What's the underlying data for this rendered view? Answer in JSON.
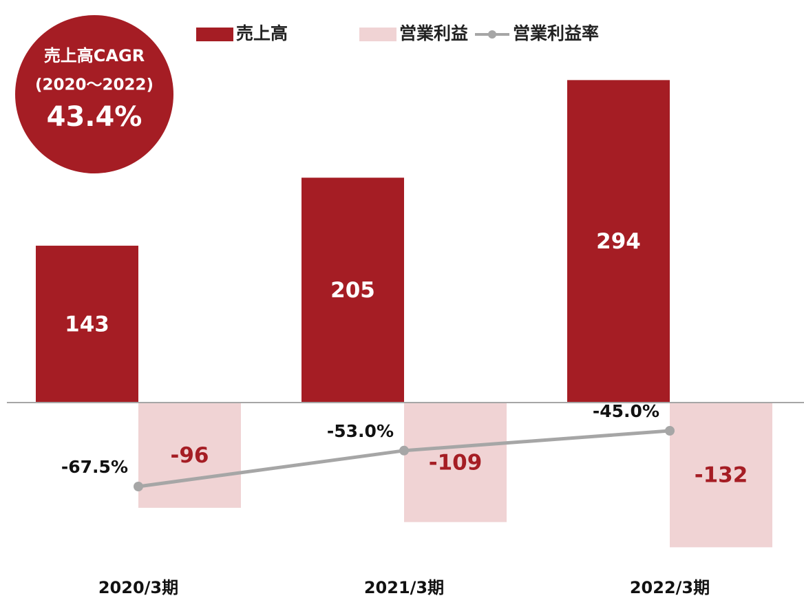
{
  "chart_data": {
    "type": "bar",
    "categories": [
      "2020/3期",
      "2021/3期",
      "2022/3期"
    ],
    "series": [
      {
        "name": "売上高",
        "color": "#a51d24",
        "values": [
          143,
          205,
          294
        ]
      },
      {
        "name": "営業利益",
        "color": "#f0d3d4",
        "values": [
          -96,
          -109,
          -132
        ]
      },
      {
        "name": "営業利益率",
        "color": "#a6a6a6",
        "type": "line",
        "axis": "y2",
        "values": [
          -67.5,
          -53.0,
          -45.0
        ],
        "value_labels": [
          "-67.5%",
          "-53.0%",
          "-45.0%"
        ]
      }
    ],
    "ylim": [
      -150,
      330
    ],
    "y2lim": [
      -100,
      112.5
    ],
    "annotations": [
      "売上高CAGR",
      "(2020～2022)",
      "43.4%"
    ]
  }
}
